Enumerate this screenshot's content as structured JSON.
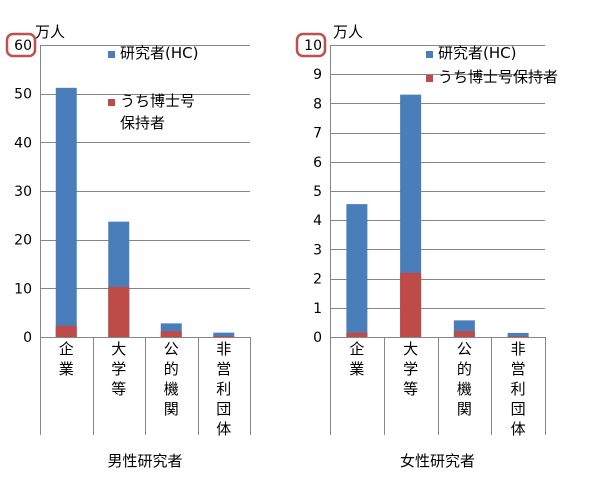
{
  "chart_data": [
    {
      "type": "bar",
      "stacked": true,
      "unit": "万人",
      "ylim": [
        0,
        60
      ],
      "yticks": [
        0,
        10,
        20,
        30,
        40,
        50,
        60
      ],
      "ytick_labels": [
        "0",
        "10",
        "20",
        "30",
        "40",
        "50",
        "60"
      ],
      "highlighted_tick": "60",
      "categories": [
        "企業",
        "大学等",
        "公的機関",
        "非営利団体"
      ],
      "xlabel": "男性研究者",
      "grid": true,
      "legend_position": "top-right",
      "series": [
        {
          "name": "うち博士号保持者",
          "values": [
            2.3,
            10.3,
            1.2,
            0.2
          ]
        },
        {
          "name": "研究者(HC)",
          "values": [
            51.2,
            23.7,
            2.8,
            0.9
          ]
        }
      ],
      "legend": [
        {
          "name": "研究者(HC)"
        },
        {
          "name": "うち博士号\n保持者"
        }
      ]
    },
    {
      "type": "bar",
      "stacked": true,
      "unit": "万人",
      "ylim": [
        0,
        10
      ],
      "yticks": [
        0,
        1,
        2,
        3,
        4,
        5,
        6,
        7,
        8,
        9,
        10
      ],
      "ytick_labels": [
        "0",
        "1",
        "2",
        "3",
        "4",
        "5",
        "6",
        "7",
        "8",
        "9",
        "10"
      ],
      "highlighted_tick": "10",
      "categories": [
        "企業",
        "大学等",
        "公的機関",
        "非営利団体"
      ],
      "xlabel": "女性研究者",
      "grid": true,
      "legend_position": "top-right",
      "series": [
        {
          "name": "うち博士号保持者",
          "values": [
            0.15,
            2.2,
            0.2,
            0.03
          ]
        },
        {
          "name": "研究者(HC)",
          "values": [
            4.55,
            8.3,
            0.57,
            0.14
          ]
        }
      ],
      "legend": [
        {
          "name": "研究者(HC)"
        },
        {
          "name": "うち博士号保持者"
        }
      ]
    }
  ],
  "colors": {
    "total": "#4a7ebb",
    "doctorate": "#be4b48",
    "highlight": "#c0504d"
  }
}
